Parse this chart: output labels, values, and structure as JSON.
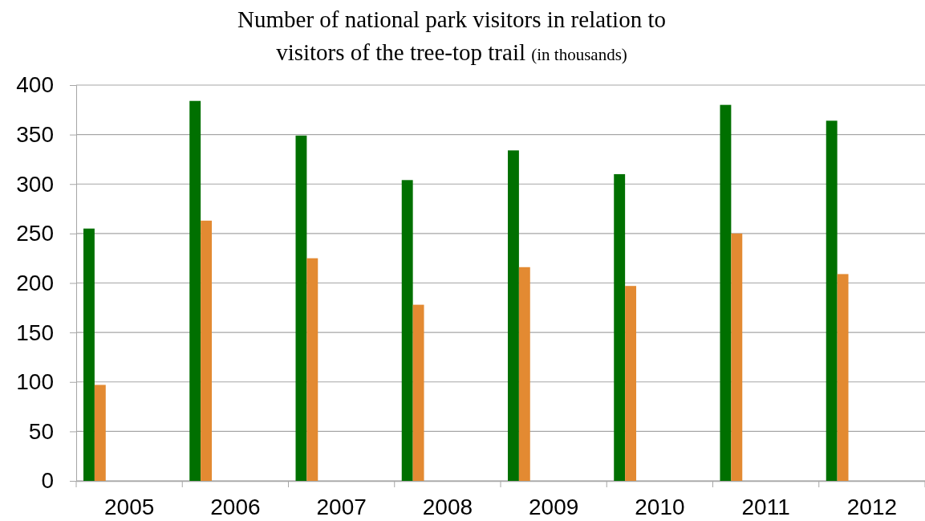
{
  "chart_data": {
    "type": "bar",
    "title": "Number of national park visitors in relation to visitors of the tree-top trail (in thousands)",
    "categories": [
      "2005",
      "2006",
      "2007",
      "2008",
      "2009",
      "2010",
      "2011",
      "2012"
    ],
    "series": [
      {
        "color": "#007000",
        "values": [
          255,
          384,
          349,
          304,
          334,
          310,
          380,
          364
        ]
      },
      {
        "color": "#e38a32",
        "values": [
          97,
          263,
          225,
          178,
          216,
          197,
          250,
          209
        ]
      }
    ],
    "ylim": [
      0,
      400
    ],
    "yticks": [
      0,
      50,
      100,
      150,
      200,
      250,
      300,
      350,
      400
    ],
    "grid": "y"
  }
}
